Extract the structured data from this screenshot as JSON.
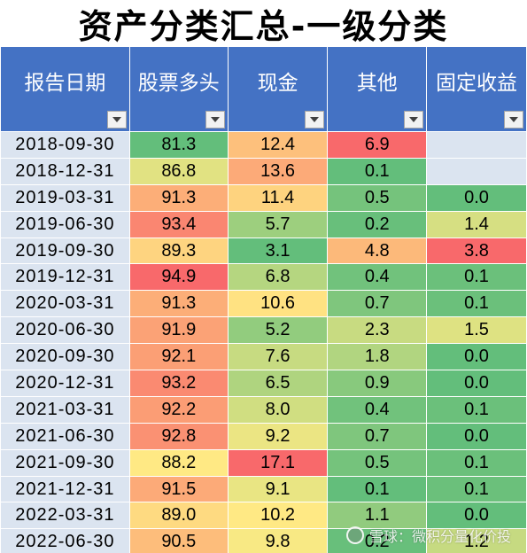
{
  "title": "资产分类汇总-一级分类",
  "headers": [
    "报告日期",
    "股票多头",
    "现金",
    "其他",
    "固定收益"
  ],
  "colors": {
    "header_bg": "#4472c4",
    "date_bg": "#dbe4f0",
    "empty_bg": "#dbe4f0",
    "scale_low": "#63be7b",
    "scale_mid": "#ffeb84",
    "scale_high": "#f8696b"
  },
  "rows": [
    {
      "date": "2018-09-30",
      "stock": "81.3",
      "cash": "12.4",
      "other": "6.9",
      "fixed": ""
    },
    {
      "date": "2018-12-31",
      "stock": "86.8",
      "cash": "13.6",
      "other": "0.1",
      "fixed": ""
    },
    {
      "date": "2019-03-31",
      "stock": "91.3",
      "cash": "11.4",
      "other": "0.5",
      "fixed": "0.0"
    },
    {
      "date": "2019-06-30",
      "stock": "93.4",
      "cash": "5.7",
      "other": "0.2",
      "fixed": "1.4"
    },
    {
      "date": "2019-09-30",
      "stock": "89.3",
      "cash": "3.1",
      "other": "4.8",
      "fixed": "3.8"
    },
    {
      "date": "2019-12-31",
      "stock": "94.9",
      "cash": "6.8",
      "other": "0.4",
      "fixed": "0.1"
    },
    {
      "date": "2020-03-31",
      "stock": "91.3",
      "cash": "10.6",
      "other": "0.7",
      "fixed": "0.1"
    },
    {
      "date": "2020-06-30",
      "stock": "91.9",
      "cash": "5.2",
      "other": "2.3",
      "fixed": "1.5"
    },
    {
      "date": "2020-09-30",
      "stock": "92.1",
      "cash": "7.6",
      "other": "1.8",
      "fixed": "0.0"
    },
    {
      "date": "2020-12-31",
      "stock": "93.2",
      "cash": "6.5",
      "other": "0.9",
      "fixed": "0.0"
    },
    {
      "date": "2021-03-31",
      "stock": "92.2",
      "cash": "8.0",
      "other": "0.4",
      "fixed": "0.1"
    },
    {
      "date": "2021-06-30",
      "stock": "92.8",
      "cash": "9.2",
      "other": "0.7",
      "fixed": "0.0"
    },
    {
      "date": "2021-09-30",
      "stock": "88.2",
      "cash": "17.1",
      "other": "0.5",
      "fixed": "0.1"
    },
    {
      "date": "2021-12-31",
      "stock": "91.5",
      "cash": "9.1",
      "other": "0.1",
      "fixed": "0.1"
    },
    {
      "date": "2022-03-31",
      "stock": "89.0",
      "cash": "10.2",
      "other": "1.1",
      "fixed": "0.0"
    },
    {
      "date": "2022-06-30",
      "stock": "90.5",
      "cash": "9.8",
      "other": "0.2",
      "fixed": "1.2"
    }
  ],
  "watermark": {
    "icon": "snowball-logo-icon",
    "text": "雪球：微积分量化价投"
  }
}
